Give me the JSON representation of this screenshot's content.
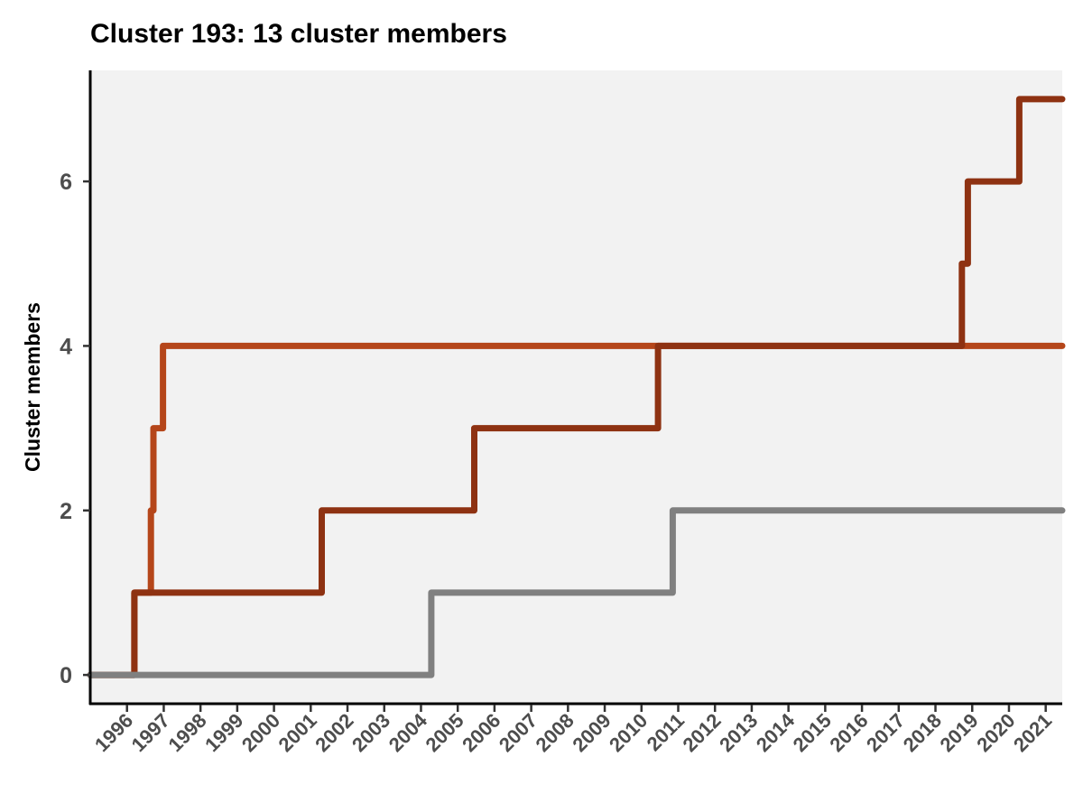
{
  "chart_data": {
    "type": "line",
    "step": true,
    "title": "Cluster 193: 13 cluster members",
    "xlabel": "",
    "ylabel": "Cluster members",
    "xlim": [
      1995.0,
      2021.45
    ],
    "ylim": [
      -0.35,
      7.35
    ],
    "yticks": [
      0,
      2,
      4,
      6
    ],
    "xticks": [
      "1996",
      "1997",
      "1998",
      "1999",
      "2000",
      "2001",
      "2002",
      "2003",
      "2004",
      "2005",
      "2006",
      "2007",
      "2008",
      "2009",
      "2010",
      "2011",
      "2012",
      "2013",
      "2014",
      "2015",
      "2016",
      "2017",
      "2018",
      "2019",
      "2020",
      "2021"
    ],
    "panel_background": "#f2f2f2",
    "grid": false,
    "legend": "none",
    "series": [
      {
        "color": "#b5461a",
        "points": [
          [
            1995.0,
            0
          ],
          [
            1996.2,
            0
          ],
          [
            1996.2,
            1
          ],
          [
            1996.65,
            1
          ],
          [
            1996.65,
            2
          ],
          [
            1996.72,
            2
          ],
          [
            1996.72,
            3
          ],
          [
            1996.98,
            3
          ],
          [
            1996.98,
            4
          ],
          [
            2021.45,
            4
          ]
        ]
      },
      {
        "color": "#8e3212",
        "points": [
          [
            1995.0,
            0
          ],
          [
            1996.2,
            0
          ],
          [
            1996.2,
            1
          ],
          [
            2001.3,
            1
          ],
          [
            2001.3,
            2
          ],
          [
            2005.45,
            2
          ],
          [
            2005.45,
            3
          ],
          [
            2010.45,
            3
          ],
          [
            2010.45,
            4
          ],
          [
            2018.72,
            4
          ],
          [
            2018.72,
            5
          ],
          [
            2018.88,
            5
          ],
          [
            2018.88,
            6
          ],
          [
            2020.28,
            6
          ],
          [
            2020.28,
            7
          ],
          [
            2021.45,
            7
          ]
        ]
      },
      {
        "color": "#808080",
        "points": [
          [
            1995.0,
            0
          ],
          [
            2004.28,
            0
          ],
          [
            2004.28,
            1
          ],
          [
            2010.85,
            1
          ],
          [
            2010.85,
            2
          ],
          [
            2021.45,
            2
          ]
        ]
      }
    ]
  }
}
